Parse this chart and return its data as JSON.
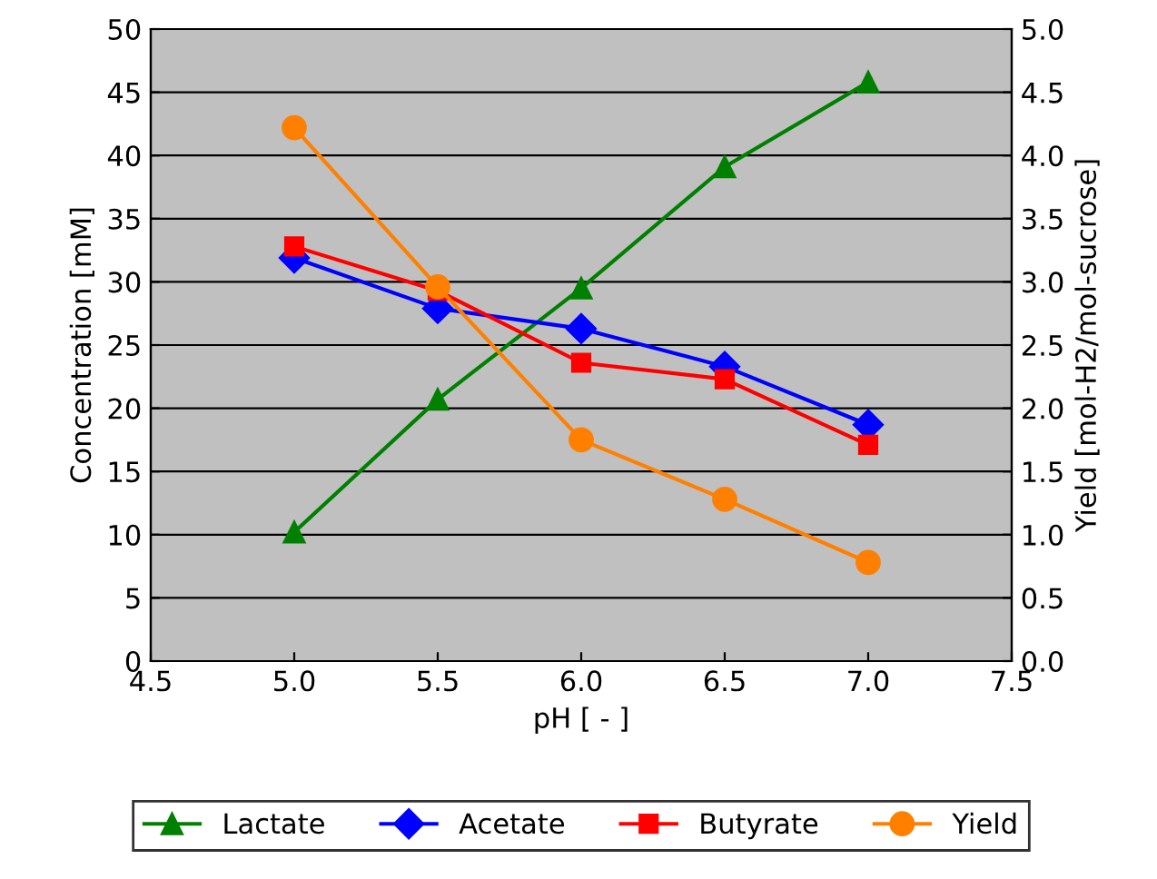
{
  "chart_data": {
    "type": "line",
    "xlabel": "pH [ - ]",
    "ylabel": "Concentration [mM]",
    "y2label": "Yield [mol-H2/mol-sucrose]",
    "x": [
      5.0,
      5.5,
      6.0,
      6.5,
      7.0
    ],
    "series": [
      {
        "name": "Lactate",
        "color": "#008000",
        "marker": "triangle",
        "values": [
          10.2,
          20.7,
          29.5,
          39.1,
          45.8
        ]
      },
      {
        "name": "Acetate",
        "color": "#0000ff",
        "marker": "diamond",
        "values": [
          31.9,
          27.9,
          26.3,
          23.3,
          18.7
        ]
      },
      {
        "name": "Butyrate",
        "color": "#ff0000",
        "marker": "square",
        "values": [
          32.8,
          29.3,
          23.6,
          22.3,
          17.1
        ]
      },
      {
        "name": "Yield",
        "color": "#ff8000",
        "marker": "circle",
        "axis": "y2",
        "values": [
          4.22,
          2.96,
          1.75,
          1.28,
          0.78
        ]
      }
    ],
    "xlim": [
      4.5,
      7.5
    ],
    "xticks": [
      {
        "value": 4.5,
        "label": "4.5"
      },
      {
        "value": 5.0,
        "label": "5.0"
      },
      {
        "value": 5.5,
        "label": "5.5"
      },
      {
        "value": 6.0,
        "label": "6.0"
      },
      {
        "value": 6.5,
        "label": "6.5"
      },
      {
        "value": 7.0,
        "label": "7.0"
      },
      {
        "value": 7.5,
        "label": "7.5"
      }
    ],
    "ylim": [
      0,
      50
    ],
    "yticks": [
      0,
      5,
      10,
      15,
      20,
      25,
      30,
      35,
      40,
      45,
      50
    ],
    "y2lim": [
      0,
      5
    ],
    "y2ticks": [
      {
        "value": 0,
        "label": "0.0"
      },
      {
        "value": 0.5,
        "label": "0.5"
      },
      {
        "value": 1,
        "label": "1.0"
      },
      {
        "value": 1.5,
        "label": "1.5"
      },
      {
        "value": 2,
        "label": "2.0"
      },
      {
        "value": 2.5,
        "label": "2.5"
      },
      {
        "value": 3,
        "label": "3.0"
      },
      {
        "value": 3.5,
        "label": "3.5"
      },
      {
        "value": 4,
        "label": "4.0"
      },
      {
        "value": 4.5,
        "label": "4.5"
      },
      {
        "value": 5,
        "label": "5.0"
      }
    ],
    "grid": "y",
    "legend": "bottom",
    "line_style": "solid"
  }
}
